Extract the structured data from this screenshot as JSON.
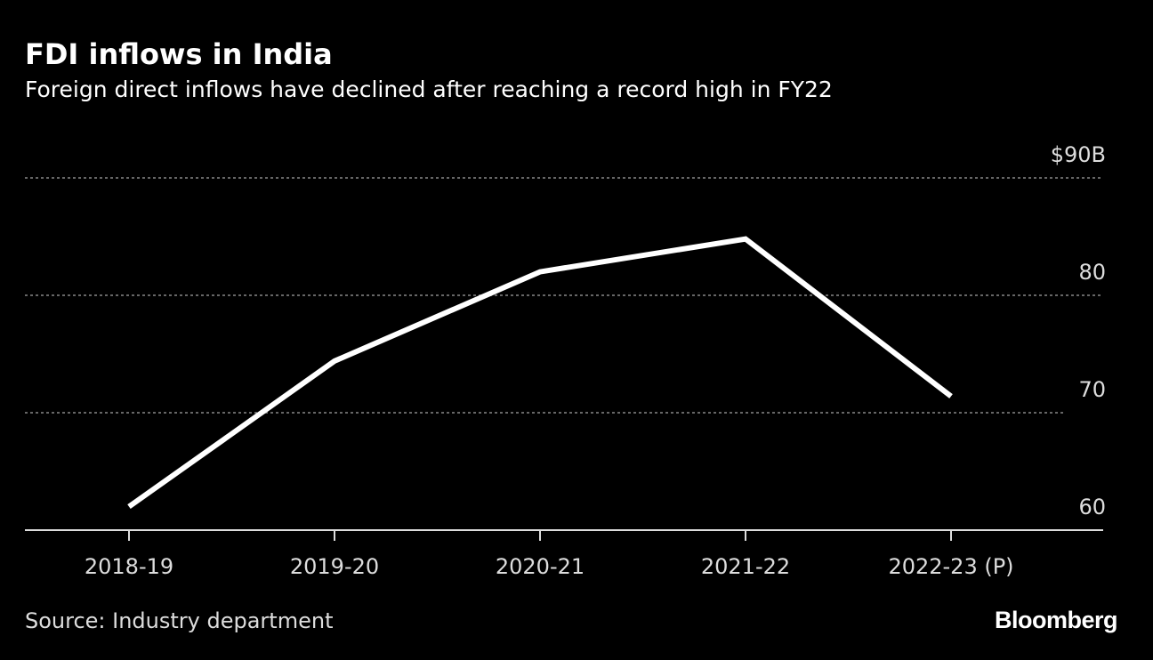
{
  "chart_data": {
    "type": "line",
    "title": "FDI inflows in India",
    "subtitle": "Foreign direct inflows have declined after reaching a record high in FY22",
    "categories": [
      "2018-19",
      "2019-20",
      "2020-21",
      "2021-22",
      "2022-23 (P)"
    ],
    "series": [
      {
        "values": [
          62.0,
          74.4,
          82.0,
          84.8,
          71.4
        ]
      }
    ],
    "yticks": [
      60,
      70,
      80,
      90
    ],
    "ytick_labels": [
      "60",
      "70",
      "80",
      "$90B"
    ],
    "ylim": [
      60,
      90
    ],
    "grid": true,
    "y_axis_side": "right",
    "colors": {
      "background": "#000000",
      "line": "#ffffff",
      "grid": "#888888"
    }
  },
  "footer": {
    "source": "Source: Industry department",
    "brand": "Bloomberg"
  }
}
